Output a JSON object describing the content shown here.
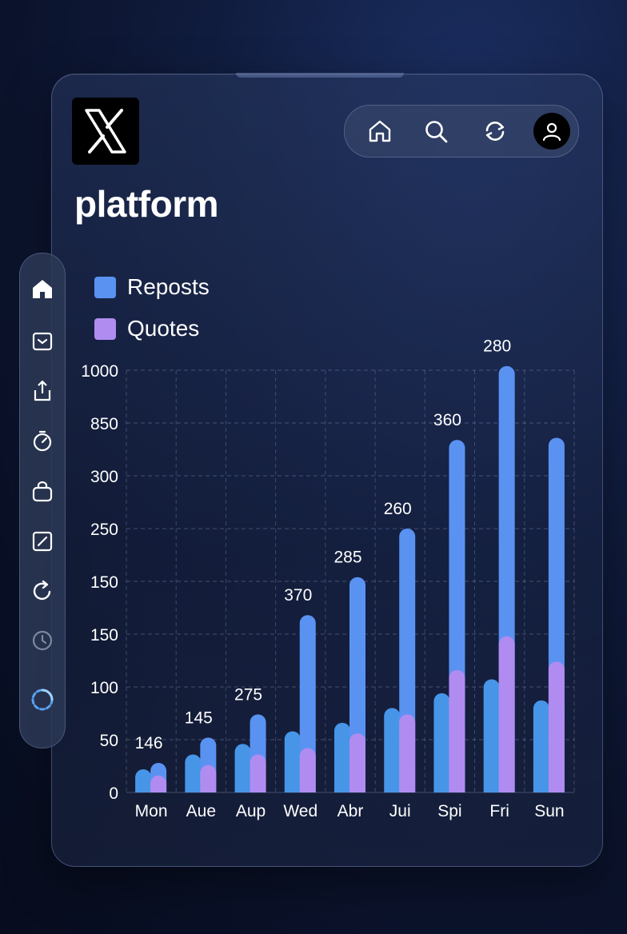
{
  "app": {
    "title": "platform",
    "logo_text": "X",
    "nav": [
      "home-icon",
      "search-icon",
      "repost-icon",
      "profile-icon"
    ],
    "sidebar": [
      "home-icon",
      "inbox-icon",
      "share-icon",
      "timer-icon",
      "bag-icon",
      "edit-icon",
      "refresh-icon",
      "clock-icon",
      "loading-icon"
    ]
  },
  "chart_data": {
    "type": "bar",
    "title": "",
    "xlabel": "",
    "ylabel": "",
    "categories": [
      "Mon",
      "Aue",
      "Aup",
      "Wed",
      "Abr",
      "Jui",
      "Spi",
      "Fri",
      "Sun"
    ],
    "y_tick_labels": [
      "0",
      "50",
      "100",
      "150",
      "150",
      "250",
      "300",
      "850",
      "1000"
    ],
    "series": [
      {
        "name": "Reposts",
        "color": "#5a92f2",
        "values": [
          70,
          130,
          185,
          420,
          510,
          625,
          835,
          1010,
          840
        ]
      },
      {
        "name": "Quotes",
        "color": "#b08cf0",
        "values": [
          40,
          65,
          90,
          105,
          140,
          185,
          290,
          370,
          310
        ]
      }
    ],
    "background_series_values": [
      55,
      90,
      115,
      145,
      165,
      200,
      235,
      268,
      218
    ],
    "data_labels": [
      "146",
      "145",
      "275",
      "370",
      "285",
      "260",
      "360",
      "280",
      ""
    ],
    "grid": true,
    "legend_position": "top-left"
  }
}
